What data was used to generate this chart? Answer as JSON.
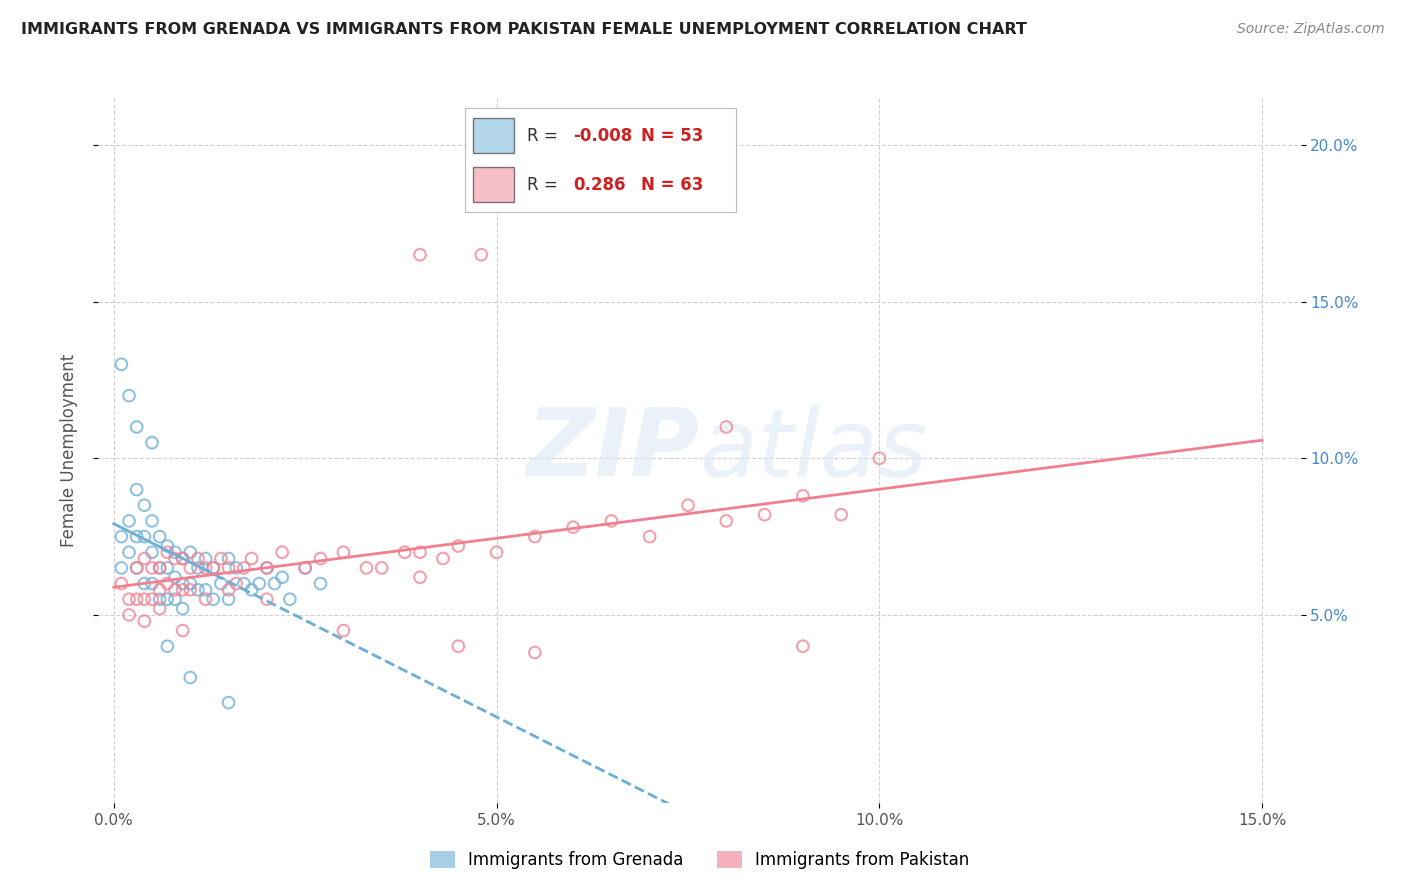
{
  "title": "IMMIGRANTS FROM GRENADA VS IMMIGRANTS FROM PAKISTAN FEMALE UNEMPLOYMENT CORRELATION CHART",
  "source": "Source: ZipAtlas.com",
  "ylabel": "Female Unemployment",
  "xlim": [
    -0.002,
    0.155
  ],
  "ylim": [
    -0.01,
    0.215
  ],
  "xticks": [
    0.0,
    0.05,
    0.1,
    0.15
  ],
  "xtick_labels": [
    "0.0%",
    "5.0%",
    "10.0%",
    "15.0%"
  ],
  "yticks_right": [
    0.05,
    0.1,
    0.15,
    0.2
  ],
  "ytick_labels_right": [
    "5.0%",
    "10.0%",
    "15.0%",
    "20.0%"
  ],
  "grenada_color": "#6baed6",
  "pakistan_color": "#f08090",
  "grenada_R": -0.008,
  "grenada_N": 53,
  "pakistan_R": 0.286,
  "pakistan_N": 63,
  "background_color": "#ffffff",
  "grenada_x": [
    0.001,
    0.001,
    0.002,
    0.002,
    0.003,
    0.003,
    0.003,
    0.004,
    0.004,
    0.004,
    0.005,
    0.005,
    0.005,
    0.006,
    0.006,
    0.006,
    0.007,
    0.007,
    0.007,
    0.008,
    0.008,
    0.008,
    0.009,
    0.009,
    0.009,
    0.01,
    0.01,
    0.011,
    0.011,
    0.012,
    0.012,
    0.013,
    0.013,
    0.014,
    0.015,
    0.015,
    0.016,
    0.017,
    0.018,
    0.019,
    0.02,
    0.021,
    0.022,
    0.023,
    0.025,
    0.027,
    0.001,
    0.002,
    0.003,
    0.005,
    0.007,
    0.01,
    0.015
  ],
  "grenada_y": [
    0.075,
    0.065,
    0.08,
    0.07,
    0.09,
    0.075,
    0.065,
    0.085,
    0.075,
    0.06,
    0.08,
    0.07,
    0.06,
    0.075,
    0.065,
    0.055,
    0.072,
    0.065,
    0.055,
    0.07,
    0.062,
    0.055,
    0.068,
    0.06,
    0.052,
    0.07,
    0.06,
    0.065,
    0.058,
    0.068,
    0.058,
    0.065,
    0.055,
    0.06,
    0.068,
    0.055,
    0.065,
    0.06,
    0.058,
    0.06,
    0.065,
    0.06,
    0.062,
    0.055,
    0.065,
    0.06,
    0.13,
    0.12,
    0.11,
    0.105,
    0.04,
    0.03,
    0.022
  ],
  "pakistan_x": [
    0.001,
    0.002,
    0.003,
    0.003,
    0.004,
    0.004,
    0.005,
    0.005,
    0.006,
    0.006,
    0.007,
    0.007,
    0.008,
    0.008,
    0.009,
    0.009,
    0.01,
    0.01,
    0.011,
    0.012,
    0.013,
    0.014,
    0.015,
    0.016,
    0.017,
    0.018,
    0.02,
    0.022,
    0.025,
    0.027,
    0.03,
    0.033,
    0.035,
    0.038,
    0.04,
    0.043,
    0.045,
    0.05,
    0.055,
    0.06,
    0.065,
    0.07,
    0.075,
    0.08,
    0.085,
    0.09,
    0.095,
    0.1,
    0.002,
    0.004,
    0.006,
    0.009,
    0.012,
    0.015,
    0.02,
    0.03,
    0.04,
    0.045,
    0.08,
    0.09,
    0.04,
    0.048,
    0.055
  ],
  "pakistan_y": [
    0.06,
    0.055,
    0.065,
    0.055,
    0.068,
    0.055,
    0.065,
    0.055,
    0.065,
    0.058,
    0.07,
    0.06,
    0.068,
    0.058,
    0.068,
    0.058,
    0.065,
    0.058,
    0.068,
    0.065,
    0.065,
    0.068,
    0.065,
    0.06,
    0.065,
    0.068,
    0.065,
    0.07,
    0.065,
    0.068,
    0.07,
    0.065,
    0.065,
    0.07,
    0.07,
    0.068,
    0.072,
    0.07,
    0.075,
    0.078,
    0.08,
    0.075,
    0.085,
    0.08,
    0.082,
    0.088,
    0.082,
    0.1,
    0.05,
    0.048,
    0.052,
    0.045,
    0.055,
    0.058,
    0.055,
    0.045,
    0.062,
    0.04,
    0.11,
    0.04,
    0.165,
    0.165,
    0.038
  ]
}
